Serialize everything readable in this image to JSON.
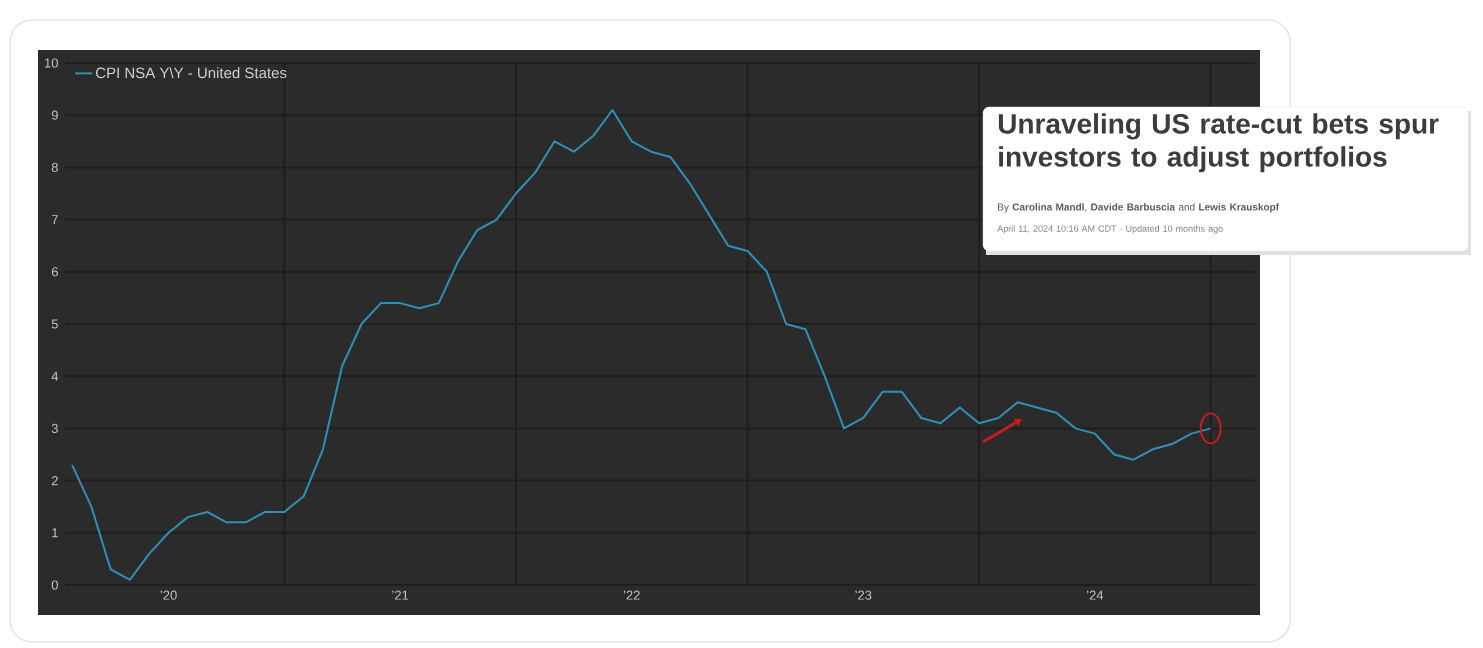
{
  "chart_data": {
    "type": "line",
    "x": [
      "2020-02",
      "2020-03",
      "2020-04",
      "2020-05",
      "2020-06",
      "2020-07",
      "2020-08",
      "2020-09",
      "2020-10",
      "2020-11",
      "2020-12",
      "2021-01",
      "2021-02",
      "2021-03",
      "2021-04",
      "2021-05",
      "2021-06",
      "2021-07",
      "2021-08",
      "2021-09",
      "2021-10",
      "2021-11",
      "2021-12",
      "2022-01",
      "2022-02",
      "2022-03",
      "2022-04",
      "2022-05",
      "2022-06",
      "2022-07",
      "2022-08",
      "2022-09",
      "2022-10",
      "2022-11",
      "2022-12",
      "2023-01",
      "2023-02",
      "2023-03",
      "2023-04",
      "2023-05",
      "2023-06",
      "2023-07",
      "2023-08",
      "2023-09",
      "2023-10",
      "2023-11",
      "2023-12",
      "2024-01",
      "2024-02",
      "2024-03",
      "2024-04",
      "2024-05",
      "2024-06",
      "2024-07",
      "2024-08",
      "2024-09",
      "2024-10",
      "2024-11",
      "2024-12",
      "2025-01"
    ],
    "series": [
      {
        "name": "CPI NSA Y\\Y - United States",
        "color": "#2e90b8",
        "values": [
          2.3,
          1.5,
          0.3,
          0.1,
          0.6,
          1.0,
          1.3,
          1.4,
          1.2,
          1.2,
          1.4,
          1.4,
          1.7,
          2.6,
          4.2,
          5.0,
          5.4,
          5.4,
          5.3,
          5.4,
          6.2,
          6.8,
          7.0,
          7.5,
          7.9,
          8.5,
          8.3,
          8.6,
          9.1,
          8.5,
          8.3,
          8.2,
          7.7,
          7.1,
          6.5,
          6.4,
          6.0,
          5.0,
          4.9,
          4.0,
          3.0,
          3.2,
          3.7,
          3.7,
          3.2,
          3.1,
          3.4,
          3.1,
          3.2,
          3.5,
          3.4,
          3.3,
          3.0,
          2.9,
          2.5,
          2.4,
          2.6,
          2.7,
          2.9,
          3.0
        ]
      }
    ],
    "xlim": [
      "2020-01-20",
      "2025-03-10"
    ],
    "xticks": [
      {
        "value": "2020-07",
        "label": "’20"
      },
      {
        "value": "2021-07",
        "label": "’21"
      },
      {
        "value": "2022-07",
        "label": "’22"
      },
      {
        "value": "2023-07",
        "label": "’23"
      },
      {
        "value": "2024-07",
        "label": "’24"
      },
      {
        "value": "2021-01",
        "label": null
      },
      {
        "value": "2022-01",
        "label": null
      },
      {
        "value": "2023-01",
        "label": null
      },
      {
        "value": "2024-01",
        "label": null
      },
      {
        "value": "2025-01",
        "label": null
      }
    ],
    "ylim": [
      0,
      10
    ],
    "yticks": [
      0,
      1,
      2,
      3,
      4,
      5,
      6,
      7,
      8,
      9,
      10
    ],
    "grid": true,
    "legend": "top left",
    "marker": "none",
    "line_style": "solid",
    "annotations": [
      "Unraveling US rate-cut bets spur investors to adjust portfolios",
      "By **Carolina Mandl**, **Davide Barbuscia** and **Lewis Krauskopf**",
      "April 11, 2024 10:16 AM CDT · Updated 10 months ago"
    ]
  }
}
